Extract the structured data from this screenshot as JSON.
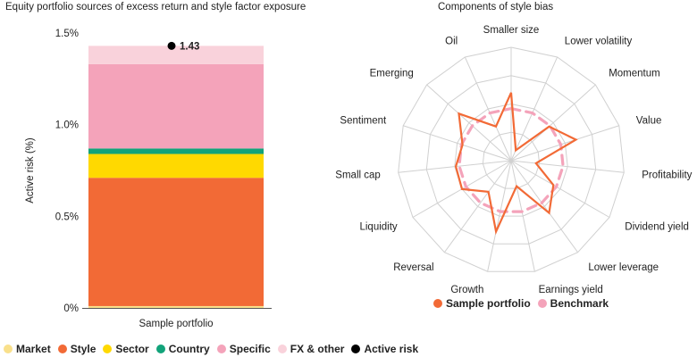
{
  "chart_data": [
    {
      "type": "bar",
      "stacked": true,
      "title": "Equity portfolio sources of excess return and style factor exposure",
      "ylabel": "Active risk (%)",
      "ylim": [
        0,
        1.5
      ],
      "y_ticks": [
        "0%",
        "0.5%",
        "1.0%",
        "1.5%"
      ],
      "categories": [
        "Sample portfolio"
      ],
      "series": [
        {
          "name": "Market",
          "color": "#F9E08B",
          "values": [
            0.01
          ]
        },
        {
          "name": "Style",
          "color": "#F26A36",
          "values": [
            0.7
          ]
        },
        {
          "name": "Sector",
          "color": "#FFD900",
          "values": [
            0.13
          ]
        },
        {
          "name": "Country",
          "color": "#12A37A",
          "values": [
            0.03
          ]
        },
        {
          "name": "Specific",
          "color": "#F4A3BA",
          "values": [
            0.46
          ]
        },
        {
          "name": "FX & other",
          "color": "#F9D2DB",
          "values": [
            0.1
          ]
        }
      ],
      "active_risk": {
        "name": "Active risk",
        "color": "#000000",
        "value": 1.43,
        "label": "1.43"
      },
      "legend_position": "bottom"
    },
    {
      "type": "radar",
      "title": "Components of style bias",
      "axes": [
        "Smaller size",
        "Lower volatility",
        "Momentum",
        "Value",
        "Profitability",
        "Dividend yield",
        "Lower leverage",
        "Earnings yield",
        "Growth",
        "Reversal",
        "Liquidity",
        "Small cap",
        "Sentiment",
        "Emerging",
        "Oil"
      ],
      "rmax": 10,
      "series": [
        {
          "name": "Sample portfolio",
          "color": "#F26A36",
          "values": [
            6,
            1,
            4.5,
            6,
            2.2,
            4.3,
            5.7,
            2.3,
            6.4,
            3.4,
            5,
            4.9,
            4.5,
            6.2,
            3.3
          ]
        },
        {
          "name": "Benchmark",
          "color": "#F4A3BA",
          "values": [
            4.6,
            4.6,
            4.6,
            4.6,
            4.6,
            4.6,
            4.6,
            4.6,
            4.6,
            4.6,
            4.6,
            4.6,
            4.6,
            4.6,
            4.6
          ]
        }
      ],
      "legend_position": "bottom"
    }
  ]
}
